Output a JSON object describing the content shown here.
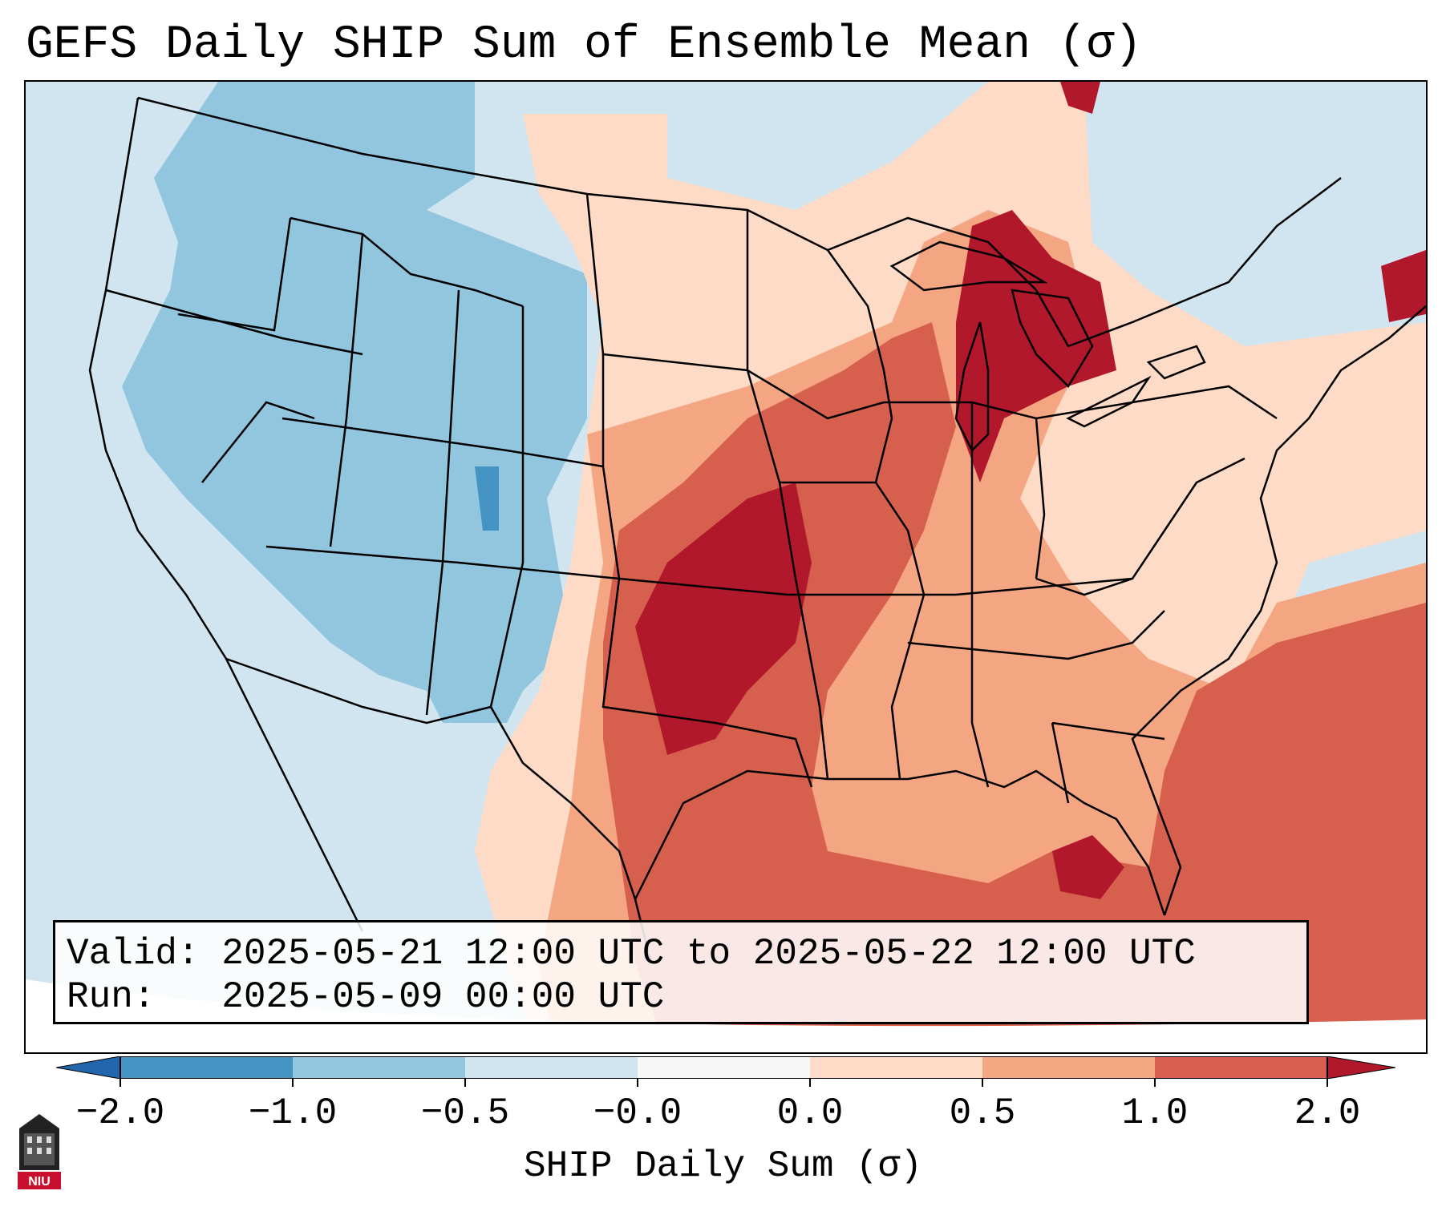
{
  "title": "GEFS Daily SHIP Sum of Ensemble Mean (σ)",
  "info": {
    "valid_label": "Valid:",
    "valid_value": "2025-05-21 12:00 UTC to 2025-05-22 12:00 UTC",
    "run_label": "Run:",
    "run_value": "2025-05-09 00:00 UTC"
  },
  "colorbar": {
    "title": "SHIP Daily Sum (σ)",
    "tick_labels": [
      "−2.0",
      "−1.0",
      "−0.5",
      "−0.0",
      "0.0",
      "0.5",
      "1.0",
      "2.0"
    ],
    "bins": [
      {
        "range": "< -2.0",
        "color": "#2166ac"
      },
      {
        "range": "-2.0 to -1.0",
        "color": "#4393c3"
      },
      {
        "range": "-1.0 to -0.5",
        "color": "#92c5de"
      },
      {
        "range": "-0.5 to -0.0",
        "color": "#d1e5f0"
      },
      {
        "range": "-0.0 to 0.0",
        "color": "#f7f7f7"
      },
      {
        "range": "0.0 to 0.5",
        "color": "#fddbc7"
      },
      {
        "range": "0.5 to 1.0",
        "color": "#f4a582"
      },
      {
        "range": "1.0 to 2.0",
        "color": "#d6604d"
      },
      {
        "range": "> 2.0",
        "color": "#b2182b"
      }
    ]
  },
  "logo": {
    "text": "NIU"
  }
}
